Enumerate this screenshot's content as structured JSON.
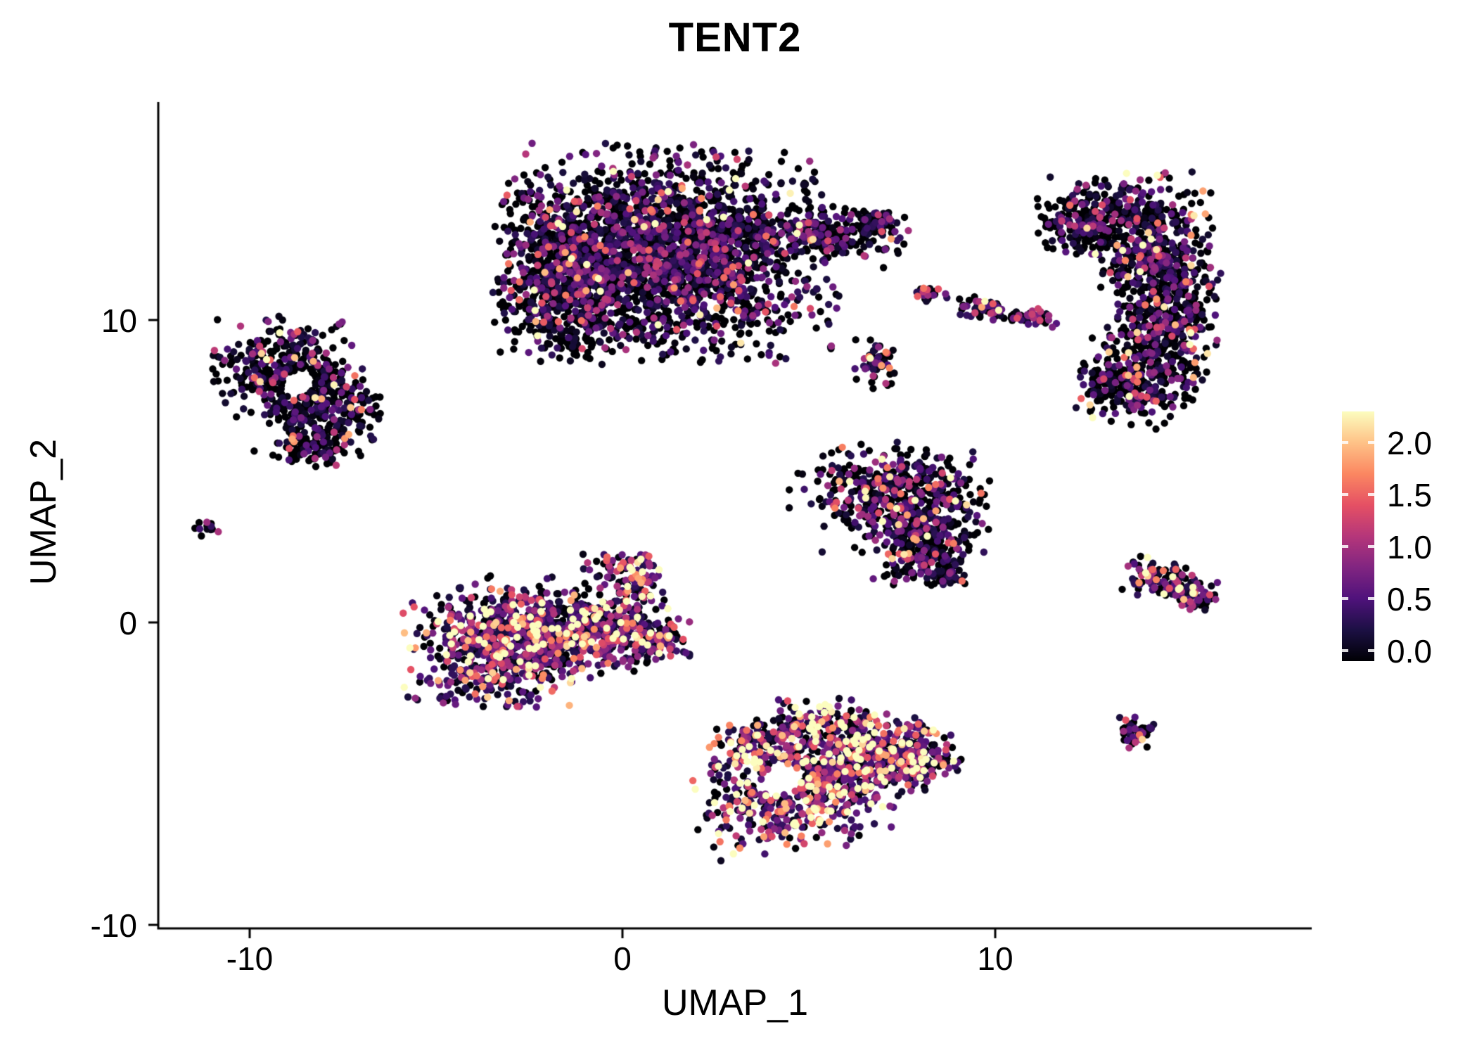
{
  "chart_data": {
    "type": "scatter",
    "title": "TENT2",
    "xlabel": "UMAP_1",
    "ylabel": "UMAP_2",
    "xlim": [
      -12.5,
      18.5
    ],
    "ylim": [
      -10.1,
      17.2
    ],
    "grid": "off",
    "legend_position": "right-colorbar",
    "x_ticks": [
      {
        "value": -10,
        "label": "-10"
      },
      {
        "value": 0,
        "label": "0"
      },
      {
        "value": 10,
        "label": "10"
      }
    ],
    "y_ticks": [
      {
        "value": 10,
        "label": "10"
      },
      {
        "value": 0,
        "label": "0"
      },
      {
        "value": -10,
        "label": "-10"
      }
    ],
    "colorbar": {
      "domain": [
        0,
        2.25
      ],
      "ticks": [
        {
          "value": 2.0,
          "label": "2.0"
        },
        {
          "value": 1.5,
          "label": "1.5"
        },
        {
          "value": 1.0,
          "label": "1.0"
        },
        {
          "value": 0.5,
          "label": "0.5"
        },
        {
          "value": 0.0,
          "label": "0.0"
        }
      ],
      "colors": [
        "#000004",
        "#1c1044",
        "#4f127b",
        "#812581",
        "#b5367a",
        "#e55064",
        "#fb8761",
        "#fec287",
        "#fcfdbf"
      ]
    },
    "n_points_estimate": 9000,
    "clusters": [
      {
        "name": "top-center",
        "expression": {
          "zero_fraction": 0.45,
          "mean": 0.5
        },
        "blobs": [
          {
            "x": 1.3,
            "y": 12.2,
            "sx": 2.0,
            "sy": 1.6,
            "rot": 0,
            "n": 2200
          },
          {
            "x": -1.5,
            "y": 10.7,
            "sx": 0.9,
            "sy": 0.9,
            "rot": 0,
            "n": 420
          },
          {
            "x": -1.9,
            "y": 12.8,
            "sx": 0.7,
            "sy": 0.9,
            "rot": 0,
            "n": 180
          },
          {
            "x": 5.4,
            "y": 12.9,
            "sx": 1.0,
            "sy": 0.4,
            "rot": -0.15,
            "n": 200
          },
          {
            "x": 6.7,
            "y": 13.2,
            "sx": 0.4,
            "sy": 0.25,
            "rot": 0,
            "n": 60
          }
        ],
        "holes": []
      },
      {
        "name": "left",
        "expression": {
          "zero_fraction": 0.5,
          "mean": 0.45
        },
        "blobs": [
          {
            "x": -9.0,
            "y": 8.4,
            "sx": 0.9,
            "sy": 0.75,
            "rot": 0,
            "n": 380
          },
          {
            "x": -8.1,
            "y": 7.0,
            "sx": 0.8,
            "sy": 0.7,
            "rot": 0,
            "n": 260
          },
          {
            "x": -8.3,
            "y": 5.9,
            "sx": 0.45,
            "sy": 0.35,
            "rot": 0,
            "n": 70
          }
        ],
        "holes": [
          {
            "x": -8.7,
            "y": 7.9,
            "r": 0.42
          }
        ]
      },
      {
        "name": "tiny-far-left",
        "expression": {
          "zero_fraction": 0.5,
          "mean": 0.5
        },
        "blobs": [
          {
            "x": -11.1,
            "y": 3.1,
            "sx": 0.16,
            "sy": 0.13,
            "rot": 0,
            "n": 14
          }
        ],
        "holes": []
      },
      {
        "name": "small-streaks-upper-right",
        "expression": {
          "zero_fraction": 0.35,
          "mean": 0.7
        },
        "blobs": [
          {
            "x": 8.2,
            "y": 10.9,
            "sx": 0.22,
            "sy": 0.15,
            "rot": 0,
            "n": 25
          },
          {
            "x": 9.8,
            "y": 10.4,
            "sx": 0.42,
            "sy": 0.18,
            "rot": -0.25,
            "n": 60
          },
          {
            "x": 10.9,
            "y": 10.1,
            "sx": 0.35,
            "sy": 0.14,
            "rot": -0.15,
            "n": 45
          },
          {
            "x": 6.8,
            "y": 8.6,
            "sx": 0.28,
            "sy": 0.4,
            "rot": 0,
            "n": 55
          }
        ],
        "holes": []
      },
      {
        "name": "right-crescent",
        "expression": {
          "zero_fraction": 0.48,
          "mean": 0.55
        },
        "blobs": [
          {
            "x": 12.3,
            "y": 13.2,
            "sx": 0.5,
            "sy": 0.5,
            "rot": 0,
            "n": 90
          },
          {
            "x": 13.4,
            "y": 13.5,
            "sx": 1.1,
            "sy": 0.65,
            "rot": 0.1,
            "n": 280
          },
          {
            "x": 14.3,
            "y": 12.2,
            "sx": 0.75,
            "sy": 0.7,
            "rot": 0,
            "n": 260
          },
          {
            "x": 14.6,
            "y": 10.6,
            "sx": 0.65,
            "sy": 0.75,
            "rot": 0,
            "n": 240
          },
          {
            "x": 14.3,
            "y": 9.0,
            "sx": 0.75,
            "sy": 0.7,
            "rot": 0,
            "n": 240
          },
          {
            "x": 13.6,
            "y": 7.7,
            "sx": 0.8,
            "sy": 0.5,
            "rot": -0.2,
            "n": 200
          }
        ],
        "holes": []
      },
      {
        "name": "mid-right-triangle",
        "expression": {
          "zero_fraction": 0.45,
          "mean": 0.5
        },
        "blobs": [
          {
            "x": 7.2,
            "y": 4.6,
            "sx": 1.2,
            "sy": 0.6,
            "rot": 0,
            "n": 330
          },
          {
            "x": 7.6,
            "y": 3.4,
            "sx": 1.0,
            "sy": 0.6,
            "rot": 0,
            "n": 280
          },
          {
            "x": 8.1,
            "y": 2.2,
            "sx": 0.6,
            "sy": 0.5,
            "rot": 0,
            "n": 160
          },
          {
            "x": 8.6,
            "y": 1.6,
            "sx": 0.3,
            "sy": 0.25,
            "rot": 0,
            "n": 50
          }
        ],
        "holes": []
      },
      {
        "name": "center-left",
        "expression": {
          "zero_fraction": 0.22,
          "mean": 0.8
        },
        "blobs": [
          {
            "x": -3.4,
            "y": -0.8,
            "sx": 1.1,
            "sy": 0.9,
            "rot": 0,
            "n": 600
          },
          {
            "x": -1.8,
            "y": -0.3,
            "sx": 1.0,
            "sy": 0.8,
            "rot": 0,
            "n": 450
          },
          {
            "x": -0.3,
            "y": -0.2,
            "sx": 0.8,
            "sy": 0.55,
            "rot": 0,
            "n": 250
          },
          {
            "x": 0.9,
            "y": -0.6,
            "sx": 0.45,
            "sy": 0.3,
            "rot": 0,
            "n": 90
          },
          {
            "x": 0.4,
            "y": 1.3,
            "sx": 0.3,
            "sy": 0.5,
            "rot": 0.2,
            "n": 70
          },
          {
            "x": -0.2,
            "y": 1.9,
            "sx": 0.5,
            "sy": 0.3,
            "rot": 0,
            "n": 40
          }
        ],
        "holes": []
      },
      {
        "name": "bottom-center",
        "expression": {
          "zero_fraction": 0.15,
          "mean": 1.0
        },
        "blobs": [
          {
            "x": 4.6,
            "y": -5.8,
            "sx": 1.2,
            "sy": 0.8,
            "rot": 0.15,
            "n": 450
          },
          {
            "x": 6.3,
            "y": -4.6,
            "sx": 1.0,
            "sy": 0.7,
            "rot": 0.1,
            "n": 400
          },
          {
            "x": 7.8,
            "y": -4.4,
            "sx": 0.6,
            "sy": 0.5,
            "rot": 0,
            "n": 180
          },
          {
            "x": 3.6,
            "y": -4.0,
            "sx": 0.6,
            "sy": 0.45,
            "rot": 0,
            "n": 130
          },
          {
            "x": 5.3,
            "y": -3.3,
            "sx": 0.7,
            "sy": 0.4,
            "rot": 0,
            "n": 120
          }
        ],
        "holes": [
          {
            "x": 4.3,
            "y": -5.2,
            "r": 0.5
          }
        ]
      },
      {
        "name": "small-right",
        "expression": {
          "zero_fraction": 0.3,
          "mean": 0.8
        },
        "blobs": [
          {
            "x": 14.7,
            "y": 1.3,
            "sx": 0.55,
            "sy": 0.3,
            "rot": -0.35,
            "n": 120
          },
          {
            "x": 15.4,
            "y": 0.8,
            "sx": 0.25,
            "sy": 0.2,
            "rot": 0,
            "n": 40
          },
          {
            "x": 13.8,
            "y": -3.6,
            "sx": 0.22,
            "sy": 0.25,
            "rot": 0,
            "n": 45
          }
        ],
        "holes": []
      }
    ]
  }
}
